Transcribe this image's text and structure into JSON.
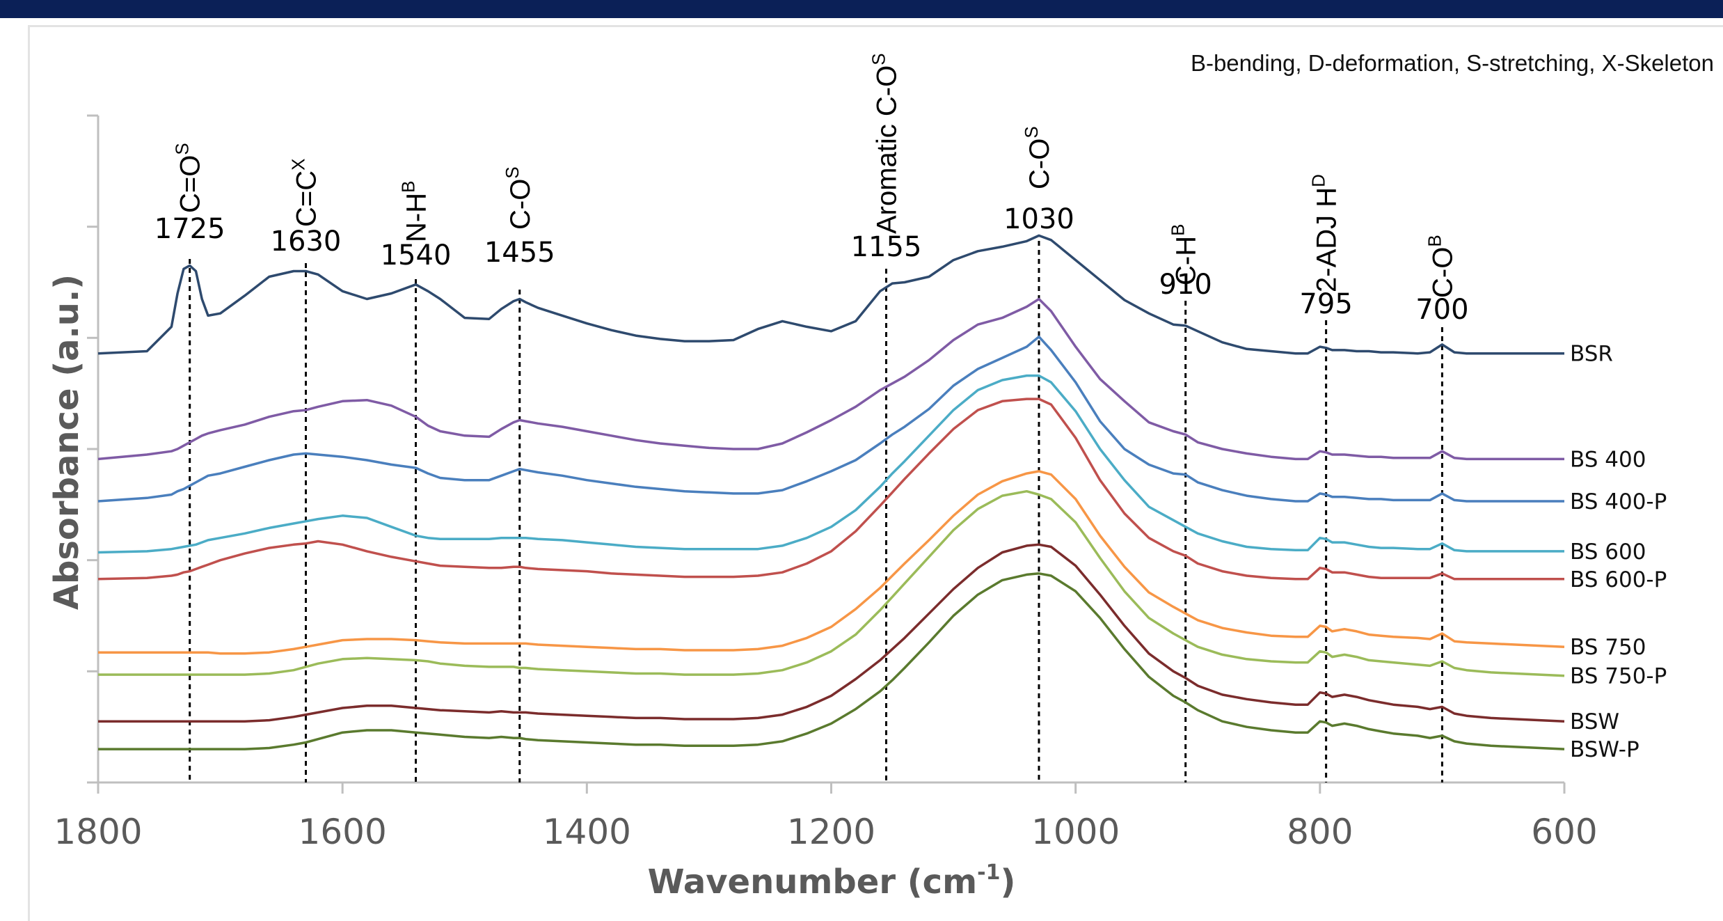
{
  "colors": {
    "top_bar": "#0b2057",
    "axis": "#bfbfbf",
    "ref_line": "#000000"
  },
  "chart_data": {
    "type": "line",
    "title": "",
    "xlabel": "Wavenumber (cm",
    "xlabel_sup": "-1",
    "xlabel_close": ")",
    "ylabel": "Absorbance (a.u.)",
    "xlim": [
      1800,
      600
    ],
    "x_ticks": [
      "1800",
      "1600",
      "1400",
      "1200",
      "1000",
      "800",
      "600"
    ],
    "x_tick_values": [
      1800,
      1600,
      1400,
      1200,
      1000,
      800,
      600
    ],
    "ylim": [
      0,
      6
    ],
    "y_ticks": [
      0,
      1,
      2,
      3,
      4,
      5,
      6
    ],
    "y_tick_labels_shown": false,
    "grid": false,
    "legend_placement": "right end of each line",
    "note": "B-bending, D-deformation, S-stretching, X-Skeleton",
    "reference_lines": [
      {
        "wavenumber": 1725,
        "label": "1725",
        "assignment": "C=O",
        "sup": "S"
      },
      {
        "wavenumber": 1630,
        "label": "1630",
        "assignment": "C=C",
        "sup": "X"
      },
      {
        "wavenumber": 1540,
        "label": "1540",
        "assignment": "N-H",
        "sup": "B"
      },
      {
        "wavenumber": 1455,
        "label": "1455",
        "assignment": "C-O",
        "sup": "S"
      },
      {
        "wavenumber": 1155,
        "label": "1155",
        "assignment": "Aromatic  C-O",
        "sup": "S"
      },
      {
        "wavenumber": 1030,
        "label": "1030",
        "assignment": "C-O",
        "sup": "S"
      },
      {
        "wavenumber": 910,
        "label": "910",
        "assignment": "C-H",
        "sup": "B"
      },
      {
        "wavenumber": 795,
        "label": "795",
        "assignment": "2-ADJ H",
        "sup": "D"
      },
      {
        "wavenumber": 700,
        "label": "700",
        "assignment": "C-O",
        "sup": "B"
      }
    ],
    "x": [
      1800,
      1760,
      1740,
      1735,
      1730,
      1725,
      1720,
      1715,
      1710,
      1700,
      1680,
      1660,
      1640,
      1630,
      1620,
      1600,
      1580,
      1560,
      1540,
      1530,
      1520,
      1500,
      1480,
      1470,
      1460,
      1455,
      1450,
      1440,
      1420,
      1400,
      1380,
      1360,
      1340,
      1320,
      1300,
      1280,
      1260,
      1240,
      1220,
      1200,
      1180,
      1160,
      1150,
      1140,
      1120,
      1100,
      1080,
      1060,
      1040,
      1030,
      1020,
      1000,
      980,
      960,
      940,
      920,
      910,
      900,
      880,
      860,
      840,
      820,
      810,
      800,
      795,
      790,
      780,
      770,
      760,
      750,
      740,
      720,
      710,
      700,
      690,
      680,
      660,
      640,
      620,
      600
    ],
    "series": [
      {
        "name": "BSR",
        "color": "#2e4a6e",
        "values": [
          3.86,
          3.88,
          4.1,
          4.4,
          4.62,
          4.65,
          4.6,
          4.35,
          4.2,
          4.22,
          4.38,
          4.55,
          4.6,
          4.6,
          4.57,
          4.42,
          4.35,
          4.4,
          4.48,
          4.42,
          4.35,
          4.18,
          4.17,
          4.26,
          4.33,
          4.35,
          4.32,
          4.27,
          4.2,
          4.13,
          4.07,
          4.02,
          3.99,
          3.97,
          3.97,
          3.98,
          4.08,
          4.15,
          4.1,
          4.06,
          4.15,
          4.42,
          4.49,
          4.5,
          4.55,
          4.7,
          4.78,
          4.82,
          4.87,
          4.92,
          4.88,
          4.7,
          4.52,
          4.34,
          4.22,
          4.12,
          4.11,
          4.06,
          3.96,
          3.9,
          3.88,
          3.86,
          3.86,
          3.92,
          3.91,
          3.89,
          3.89,
          3.88,
          3.88,
          3.87,
          3.87,
          3.86,
          3.87,
          3.94,
          3.87,
          3.86,
          3.86,
          3.86,
          3.86,
          3.86
        ]
      },
      {
        "name": "BS 400",
        "color": "#7f5ba5",
        "values": [
          2.91,
          2.95,
          2.98,
          3.0,
          3.03,
          3.06,
          3.09,
          3.12,
          3.14,
          3.17,
          3.22,
          3.29,
          3.34,
          3.35,
          3.38,
          3.43,
          3.44,
          3.39,
          3.29,
          3.21,
          3.16,
          3.12,
          3.11,
          3.18,
          3.24,
          3.26,
          3.25,
          3.23,
          3.2,
          3.16,
          3.12,
          3.08,
          3.05,
          3.03,
          3.01,
          3.0,
          3.0,
          3.05,
          3.15,
          3.26,
          3.38,
          3.53,
          3.59,
          3.65,
          3.8,
          3.98,
          4.12,
          4.18,
          4.28,
          4.35,
          4.24,
          3.92,
          3.63,
          3.43,
          3.24,
          3.16,
          3.13,
          3.06,
          3.0,
          2.96,
          2.93,
          2.91,
          2.91,
          2.98,
          2.97,
          2.95,
          2.95,
          2.94,
          2.93,
          2.93,
          2.92,
          2.92,
          2.92,
          2.98,
          2.92,
          2.91,
          2.91,
          2.91,
          2.91,
          2.91
        ]
      },
      {
        "name": "BS 400-P",
        "color": "#4a7fbd",
        "values": [
          2.53,
          2.56,
          2.59,
          2.62,
          2.64,
          2.67,
          2.7,
          2.73,
          2.76,
          2.78,
          2.84,
          2.9,
          2.95,
          2.96,
          2.95,
          2.93,
          2.9,
          2.86,
          2.83,
          2.78,
          2.74,
          2.72,
          2.72,
          2.76,
          2.8,
          2.82,
          2.81,
          2.79,
          2.76,
          2.72,
          2.69,
          2.66,
          2.64,
          2.62,
          2.61,
          2.6,
          2.6,
          2.63,
          2.71,
          2.8,
          2.9,
          3.05,
          3.13,
          3.2,
          3.36,
          3.57,
          3.72,
          3.82,
          3.92,
          4.01,
          3.89,
          3.6,
          3.25,
          3.0,
          2.86,
          2.78,
          2.77,
          2.7,
          2.63,
          2.58,
          2.55,
          2.53,
          2.53,
          2.6,
          2.59,
          2.57,
          2.57,
          2.56,
          2.55,
          2.55,
          2.54,
          2.54,
          2.54,
          2.6,
          2.54,
          2.53,
          2.53,
          2.53,
          2.53,
          2.53
        ]
      },
      {
        "name": "BS 600",
        "color": "#4bacc6",
        "values": [
          2.07,
          2.08,
          2.1,
          2.11,
          2.12,
          2.13,
          2.14,
          2.16,
          2.18,
          2.2,
          2.24,
          2.29,
          2.33,
          2.35,
          2.37,
          2.4,
          2.38,
          2.3,
          2.22,
          2.2,
          2.19,
          2.19,
          2.19,
          2.2,
          2.2,
          2.2,
          2.2,
          2.19,
          2.18,
          2.16,
          2.14,
          2.12,
          2.11,
          2.1,
          2.1,
          2.1,
          2.1,
          2.13,
          2.2,
          2.3,
          2.45,
          2.66,
          2.78,
          2.89,
          3.12,
          3.35,
          3.53,
          3.62,
          3.66,
          3.66,
          3.6,
          3.34,
          3.0,
          2.72,
          2.48,
          2.36,
          2.3,
          2.24,
          2.17,
          2.12,
          2.1,
          2.09,
          2.09,
          2.2,
          2.19,
          2.16,
          2.16,
          2.14,
          2.12,
          2.11,
          2.11,
          2.1,
          2.1,
          2.15,
          2.09,
          2.08,
          2.08,
          2.08,
          2.08,
          2.08
        ]
      },
      {
        "name": "BS 600-P",
        "color": "#c0504d",
        "values": [
          1.83,
          1.84,
          1.86,
          1.87,
          1.89,
          1.9,
          1.92,
          1.94,
          1.96,
          2.0,
          2.06,
          2.11,
          2.14,
          2.15,
          2.17,
          2.14,
          2.08,
          2.03,
          1.99,
          1.97,
          1.95,
          1.94,
          1.93,
          1.93,
          1.94,
          1.94,
          1.93,
          1.92,
          1.91,
          1.9,
          1.88,
          1.87,
          1.86,
          1.85,
          1.85,
          1.85,
          1.86,
          1.89,
          1.97,
          2.08,
          2.26,
          2.49,
          2.61,
          2.73,
          2.96,
          3.18,
          3.35,
          3.43,
          3.45,
          3.45,
          3.4,
          3.1,
          2.72,
          2.42,
          2.2,
          2.08,
          2.04,
          1.97,
          1.9,
          1.86,
          1.84,
          1.83,
          1.83,
          1.93,
          1.92,
          1.89,
          1.89,
          1.87,
          1.85,
          1.84,
          1.84,
          1.84,
          1.84,
          1.88,
          1.83,
          1.83,
          1.83,
          1.83,
          1.83,
          1.83
        ]
      },
      {
        "name": "BS 750",
        "color": "#f79646",
        "values": [
          1.17,
          1.17,
          1.17,
          1.17,
          1.17,
          1.17,
          1.17,
          1.17,
          1.17,
          1.16,
          1.16,
          1.17,
          1.2,
          1.22,
          1.24,
          1.28,
          1.29,
          1.29,
          1.28,
          1.27,
          1.26,
          1.25,
          1.25,
          1.25,
          1.25,
          1.25,
          1.25,
          1.24,
          1.23,
          1.22,
          1.21,
          1.2,
          1.2,
          1.19,
          1.19,
          1.19,
          1.2,
          1.23,
          1.3,
          1.4,
          1.56,
          1.75,
          1.86,
          1.97,
          2.18,
          2.4,
          2.59,
          2.71,
          2.78,
          2.8,
          2.77,
          2.55,
          2.22,
          1.94,
          1.71,
          1.58,
          1.52,
          1.46,
          1.39,
          1.35,
          1.32,
          1.31,
          1.31,
          1.41,
          1.4,
          1.36,
          1.38,
          1.36,
          1.33,
          1.32,
          1.31,
          1.3,
          1.29,
          1.34,
          1.27,
          1.26,
          1.25,
          1.24,
          1.23,
          1.22
        ]
      },
      {
        "name": "BS 750-P",
        "color": "#9bbb59",
        "values": [
          0.97,
          0.97,
          0.97,
          0.97,
          0.97,
          0.97,
          0.97,
          0.97,
          0.97,
          0.97,
          0.97,
          0.98,
          1.01,
          1.04,
          1.07,
          1.11,
          1.12,
          1.11,
          1.1,
          1.09,
          1.07,
          1.05,
          1.04,
          1.04,
          1.04,
          1.03,
          1.03,
          1.02,
          1.01,
          1.0,
          0.99,
          0.98,
          0.98,
          0.97,
          0.97,
          0.97,
          0.98,
          1.01,
          1.08,
          1.18,
          1.33,
          1.55,
          1.67,
          1.79,
          2.03,
          2.27,
          2.46,
          2.58,
          2.62,
          2.59,
          2.55,
          2.34,
          2.02,
          1.72,
          1.48,
          1.34,
          1.28,
          1.22,
          1.15,
          1.11,
          1.09,
          1.08,
          1.08,
          1.18,
          1.17,
          1.13,
          1.15,
          1.13,
          1.1,
          1.09,
          1.08,
          1.06,
          1.05,
          1.09,
          1.03,
          1.01,
          0.99,
          0.98,
          0.97,
          0.96
        ]
      },
      {
        "name": "BSW",
        "color": "#7b2c2c",
        "values": [
          0.55,
          0.55,
          0.55,
          0.55,
          0.55,
          0.55,
          0.55,
          0.55,
          0.55,
          0.55,
          0.55,
          0.56,
          0.59,
          0.61,
          0.63,
          0.67,
          0.69,
          0.69,
          0.67,
          0.66,
          0.65,
          0.64,
          0.63,
          0.64,
          0.63,
          0.63,
          0.63,
          0.62,
          0.61,
          0.6,
          0.59,
          0.58,
          0.58,
          0.57,
          0.57,
          0.57,
          0.58,
          0.61,
          0.68,
          0.78,
          0.93,
          1.1,
          1.2,
          1.3,
          1.52,
          1.74,
          1.93,
          2.07,
          2.13,
          2.14,
          2.12,
          1.95,
          1.69,
          1.41,
          1.16,
          1.0,
          0.94,
          0.87,
          0.79,
          0.75,
          0.72,
          0.7,
          0.7,
          0.81,
          0.8,
          0.77,
          0.79,
          0.77,
          0.74,
          0.72,
          0.7,
          0.68,
          0.66,
          0.68,
          0.62,
          0.6,
          0.58,
          0.57,
          0.56,
          0.55
        ]
      },
      {
        "name": "BSW-P",
        "color": "#5a7a2e",
        "values": [
          0.3,
          0.3,
          0.3,
          0.3,
          0.3,
          0.3,
          0.3,
          0.3,
          0.3,
          0.3,
          0.3,
          0.31,
          0.34,
          0.36,
          0.39,
          0.45,
          0.47,
          0.47,
          0.45,
          0.44,
          0.43,
          0.41,
          0.4,
          0.41,
          0.4,
          0.4,
          0.39,
          0.38,
          0.37,
          0.36,
          0.35,
          0.34,
          0.34,
          0.33,
          0.33,
          0.33,
          0.34,
          0.37,
          0.44,
          0.53,
          0.66,
          0.82,
          0.92,
          1.03,
          1.26,
          1.5,
          1.69,
          1.82,
          1.87,
          1.88,
          1.86,
          1.72,
          1.48,
          1.2,
          0.95,
          0.78,
          0.72,
          0.65,
          0.55,
          0.5,
          0.47,
          0.45,
          0.45,
          0.55,
          0.54,
          0.51,
          0.53,
          0.51,
          0.48,
          0.46,
          0.44,
          0.42,
          0.4,
          0.42,
          0.37,
          0.35,
          0.33,
          0.32,
          0.31,
          0.3
        ]
      }
    ]
  }
}
